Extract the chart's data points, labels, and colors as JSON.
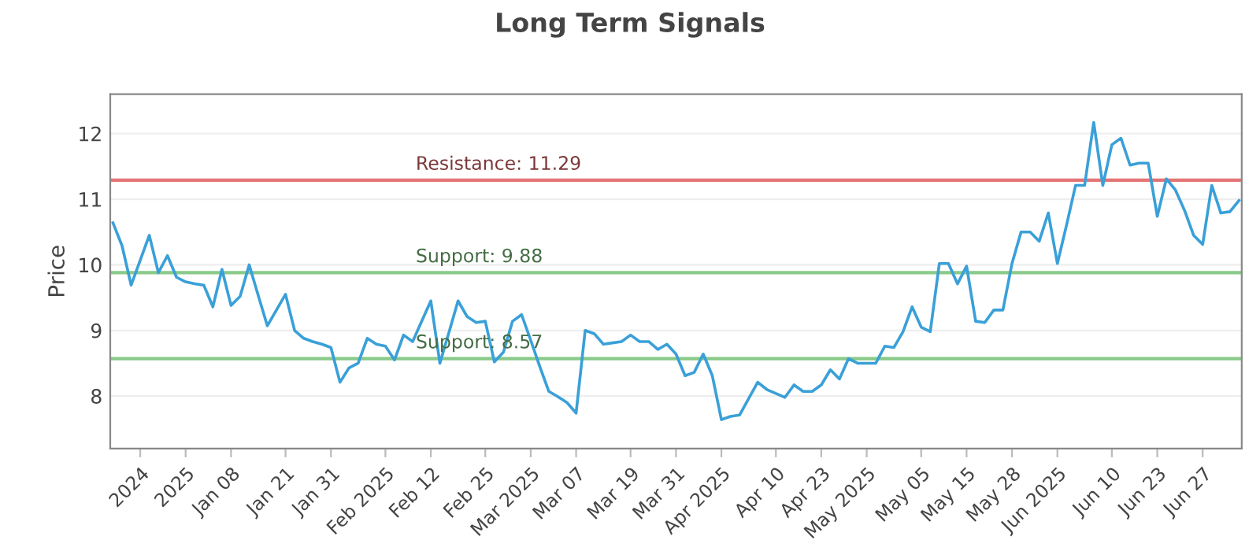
{
  "chart_data": {
    "type": "line",
    "title": "Long Term Signals",
    "ylabel": "Price",
    "categories": [
      null,
      null,
      null,
      "2024",
      null,
      null,
      null,
      null,
      "2025",
      null,
      null,
      null,
      null,
      "Jan 08",
      null,
      null,
      null,
      null,
      null,
      "Jan 21",
      null,
      null,
      null,
      null,
      "Jan 31",
      null,
      null,
      null,
      null,
      null,
      "Feb 2025",
      null,
      null,
      null,
      null,
      "Feb 12",
      null,
      null,
      null,
      null,
      null,
      "Feb 25",
      null,
      null,
      null,
      null,
      "Mar 2025",
      null,
      null,
      null,
      null,
      "Mar 07",
      null,
      null,
      null,
      null,
      null,
      "Mar 19",
      null,
      null,
      null,
      null,
      "Mar 31",
      null,
      null,
      null,
      null,
      "Apr 2025",
      null,
      null,
      null,
      null,
      null,
      "Apr 10",
      null,
      null,
      null,
      null,
      "Apr 23",
      null,
      null,
      null,
      null,
      "May 2025",
      null,
      null,
      null,
      null,
      null,
      "May 05",
      null,
      null,
      null,
      null,
      "May 15",
      null,
      null,
      null,
      null,
      "May 28",
      null,
      null,
      null,
      null,
      "Jun 2025",
      null,
      null,
      null,
      null,
      null,
      "Jun 10",
      null,
      null,
      null,
      null,
      "Jun 23",
      null,
      null,
      null,
      null,
      "Jun 27",
      null,
      null,
      null,
      null
    ],
    "series": [
      {
        "color": "#3aa0d8",
        "values": [
          10.64,
          10.29,
          9.69,
          10.07,
          10.45,
          9.88,
          10.14,
          9.81,
          9.74,
          9.71,
          9.69,
          9.36,
          9.93,
          9.38,
          9.52,
          10.0,
          9.53,
          9.07,
          9.31,
          9.55,
          9.0,
          8.88,
          8.83,
          8.79,
          8.74,
          8.21,
          8.43,
          8.5,
          8.88,
          8.79,
          8.76,
          8.55,
          8.93,
          8.83,
          9.14,
          9.45,
          8.5,
          8.97,
          9.45,
          9.21,
          9.12,
          9.14,
          8.52,
          8.67,
          9.14,
          9.24,
          8.85,
          8.45,
          8.07,
          7.99,
          7.9,
          7.74,
          9.0,
          8.95,
          8.79,
          8.81,
          8.83,
          8.93,
          8.83,
          8.83,
          8.71,
          8.79,
          8.64,
          8.31,
          8.36,
          8.64,
          8.31,
          7.64,
          7.69,
          7.71,
          7.96,
          8.21,
          8.1,
          8.04,
          7.98,
          8.17,
          8.07,
          8.07,
          8.17,
          8.4,
          8.26,
          8.57,
          8.5,
          8.5,
          8.5,
          8.76,
          8.74,
          8.98,
          9.36,
          9.05,
          8.98,
          10.02,
          10.02,
          9.71,
          9.98,
          9.14,
          9.12,
          9.31,
          9.31,
          10.02,
          10.5,
          10.5,
          10.36,
          10.79,
          10.02,
          10.6,
          11.21,
          11.21,
          12.17,
          11.21,
          11.83,
          11.93,
          11.52,
          11.55,
          11.55,
          10.74,
          11.31,
          11.14,
          10.83,
          10.45,
          10.31,
          11.21,
          10.79,
          10.81,
          10.98
        ]
      }
    ],
    "ylim": [
      7.2,
      12.6
    ],
    "yticks": [
      8,
      9,
      10,
      11,
      12
    ],
    "grid": "y",
    "marker": "none",
    "line_style": "solid",
    "ref_lines": [
      {
        "axis": "y",
        "value": 11.29,
        "label": "Resistance: 11.29",
        "color": "#e06666"
      },
      {
        "axis": "y",
        "value": 9.88,
        "label": "Support: 9.88",
        "color": "#7cc47c"
      },
      {
        "axis": "y",
        "value": 8.57,
        "label": "Support: 8.57",
        "color": "#7cc47c"
      }
    ]
  }
}
